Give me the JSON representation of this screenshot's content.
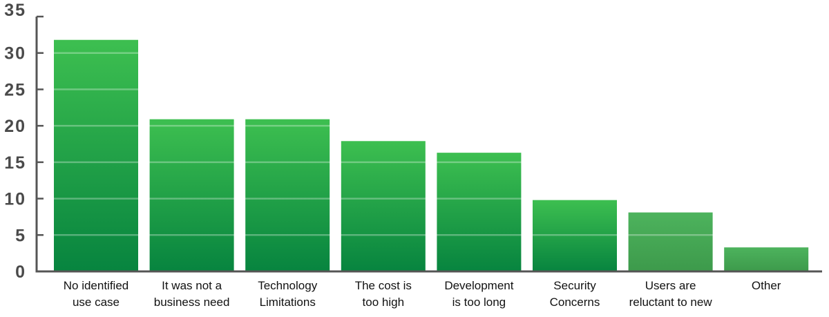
{
  "chart_data": {
    "type": "bar",
    "title": "",
    "xlabel": "",
    "ylabel": "",
    "ylim": [
      0,
      35
    ],
    "yticks": [
      0,
      5,
      10,
      15,
      20,
      25,
      30,
      35
    ],
    "grid": true,
    "categories": [
      [
        "No identified",
        "use case"
      ],
      [
        "It was not a",
        "business need"
      ],
      [
        "Technology",
        "Limitations"
      ],
      [
        "The cost is",
        "too high"
      ],
      [
        "Development",
        "is too long"
      ],
      [
        "Security",
        "Concerns"
      ],
      [
        "Users are",
        "reluctant to new"
      ],
      [
        "Other"
      ]
    ],
    "values": [
      31.8,
      20.9,
      20.9,
      17.9,
      16.3,
      9.8,
      8.1,
      3.3
    ],
    "colors": {
      "bar_top": "#3dbf50",
      "bar_bottom": "#07843f",
      "bar_muted_top": "#4db35d",
      "bar_muted_bottom": "#3d9a4b",
      "axis": "#555555",
      "tick_label": "#4a4a4a"
    }
  }
}
